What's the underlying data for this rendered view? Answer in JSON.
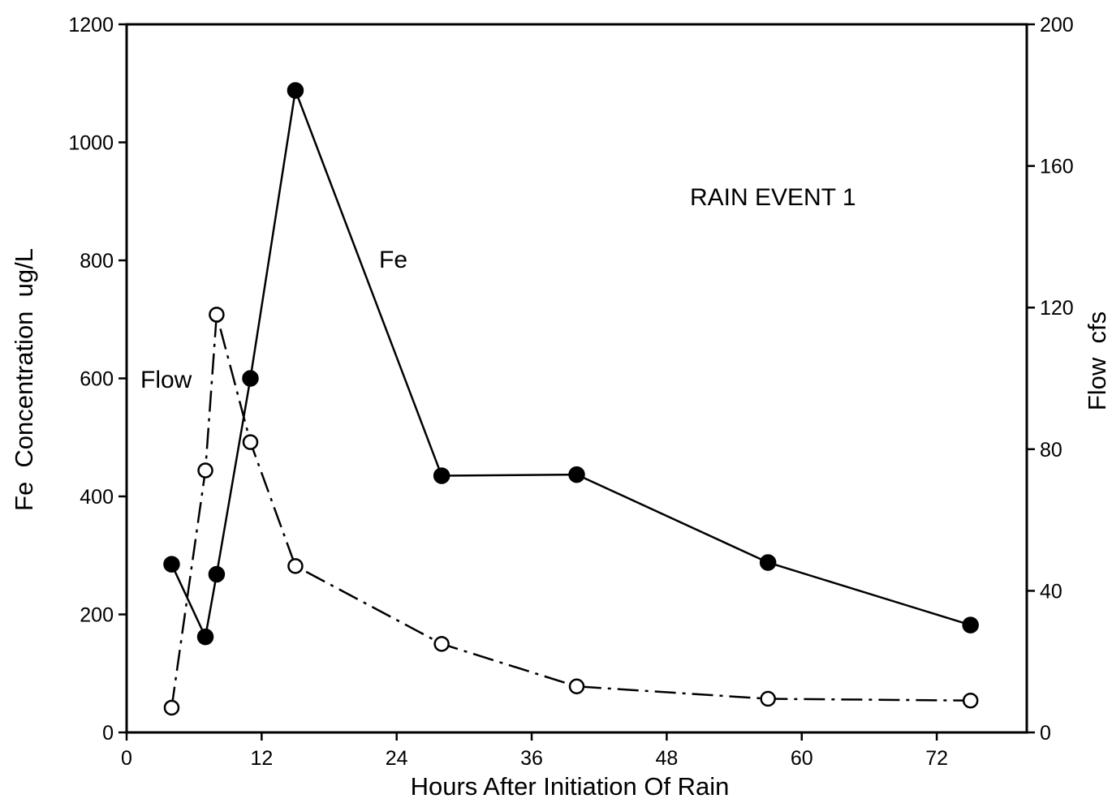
{
  "chart_data": {
    "type": "line",
    "title": "",
    "xlabel": "Hours After Initiation Of Rain",
    "ylabel": "Fe  Concentration  ug/L",
    "y2label": "Flow  cfs",
    "xlim": [
      0,
      80
    ],
    "ylim": [
      0,
      1200
    ],
    "y2lim": [
      0,
      200
    ],
    "xticks": [
      "0",
      "12",
      "24",
      "36",
      "48",
      "60",
      "72"
    ],
    "yticks": [
      "0",
      "200",
      "400",
      "600",
      "800",
      "1000",
      "1200"
    ],
    "y2ticks": [
      "0",
      "40",
      "80",
      "120",
      "160",
      "200"
    ],
    "grid": false,
    "annotations": {
      "event": "RAIN EVENT 1",
      "fe": "Fe",
      "flow": "Flow"
    },
    "series": [
      {
        "name": "Fe",
        "axis": "left",
        "marker": "filled-circle",
        "line_style": "solid",
        "x": [
          4,
          7,
          8,
          11,
          15,
          28,
          40,
          57,
          75
        ],
        "y": [
          285,
          162,
          268,
          600,
          1088,
          435,
          437,
          288,
          182
        ]
      },
      {
        "name": "Flow",
        "axis": "right",
        "marker": "open-circle",
        "line_style": "dash-dot",
        "x": [
          4,
          7,
          8,
          11,
          15,
          28,
          40,
          57,
          75
        ],
        "y": [
          7,
          74,
          118,
          82,
          47,
          25,
          13,
          9.5,
          9
        ]
      }
    ]
  }
}
